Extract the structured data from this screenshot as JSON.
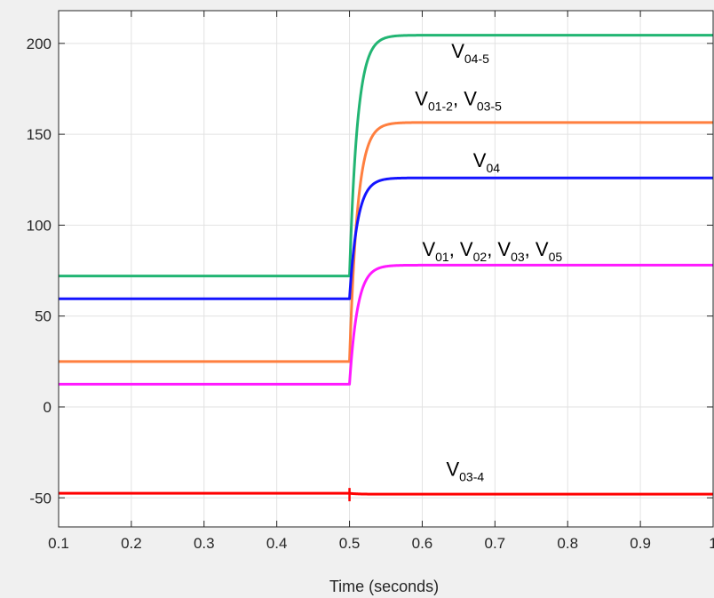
{
  "chart_data": {
    "type": "line",
    "title": "",
    "xlabel": "Time (seconds)",
    "ylabel": "",
    "xlim": [
      0.1,
      1.0
    ],
    "ylim": [
      -66,
      218
    ],
    "xticks": [
      0.1,
      0.2,
      0.3,
      0.4,
      0.5,
      0.6,
      0.7,
      0.8,
      0.9,
      1.0
    ],
    "xtick_labels": [
      "0.1",
      "0.2",
      "0.3",
      "0.4",
      "0.5",
      "0.6",
      "0.7",
      "0.8",
      "0.9",
      "1"
    ],
    "yticks": [
      -50,
      0,
      50,
      100,
      150,
      200
    ],
    "ytick_labels": [
      "-50",
      "0",
      "50",
      "100",
      "150",
      "200"
    ],
    "grid": true,
    "step_time": 0.5,
    "time_constant": 0.011,
    "series": [
      {
        "color": "#22b573",
        "before": 72,
        "after": 204.5
      },
      {
        "color": "#ff7f3f",
        "before": 25,
        "after": 156.5
      },
      {
        "color": "#1414ff",
        "before": 59.5,
        "after": 126
      },
      {
        "color": "#ff19ff",
        "before": 12.5,
        "after": 78
      },
      {
        "color": "#ff0000",
        "before": -47.5,
        "after": -48
      }
    ],
    "annotations": [
      {
        "x": 0.64,
        "y": 192,
        "parts": [
          {
            "t": "V"
          },
          {
            "s": "04-5"
          }
        ]
      },
      {
        "x": 0.59,
        "y": 166,
        "parts": [
          {
            "t": "V"
          },
          {
            "s": "01-2"
          },
          {
            "t": ", V"
          },
          {
            "s": "03-5"
          }
        ]
      },
      {
        "x": 0.67,
        "y": 132,
        "parts": [
          {
            "t": "V"
          },
          {
            "s": "04"
          }
        ]
      },
      {
        "x": 0.6,
        "y": 83,
        "parts": [
          {
            "t": "V"
          },
          {
            "s": "01"
          },
          {
            "t": ", V"
          },
          {
            "s": "02"
          },
          {
            "t": ", V"
          },
          {
            "s": "03"
          },
          {
            "t": ", V"
          },
          {
            "s": "05"
          }
        ]
      },
      {
        "x": 0.633,
        "y": -38,
        "parts": [
          {
            "t": "V"
          },
          {
            "s": "03-4"
          }
        ]
      }
    ]
  }
}
